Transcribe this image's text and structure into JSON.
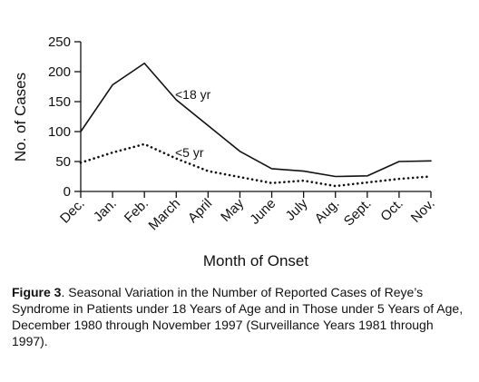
{
  "chart_data": {
    "type": "line",
    "title": "",
    "xlabel": "Month of Onset",
    "ylabel": "No. of Cases",
    "categories": [
      "Dec.",
      "Jan.",
      "Feb.",
      "March",
      "April",
      "May",
      "June",
      "July",
      "Aug.",
      "Sept.",
      "Oct.",
      "Nov."
    ],
    "ylim": [
      0,
      250
    ],
    "yticks": [
      0,
      50,
      100,
      150,
      200,
      250
    ],
    "grid": false,
    "legend": "inline labels",
    "series": [
      {
        "name": "<18 yr",
        "style": "solid",
        "color": "#111111",
        "values": [
          100,
          178,
          214,
          153,
          110,
          67,
          38,
          34,
          25,
          26,
          50,
          51
        ]
      },
      {
        "name": "<5 yr",
        "style": "dotted",
        "color": "#111111",
        "values": [
          48,
          65,
          79,
          55,
          34,
          24,
          14,
          18,
          9,
          15,
          21,
          25
        ]
      }
    ]
  },
  "caption": {
    "lead": "Figure 3",
    "text": ". Seasonal Variation in the Number of Reported Cases of Reye’s Syndrome in Patients under 18 Years of Age and in Those under 5 Years of Age, December 1980 through November 1997 (Surveillance Years 1981 through 1997)."
  }
}
